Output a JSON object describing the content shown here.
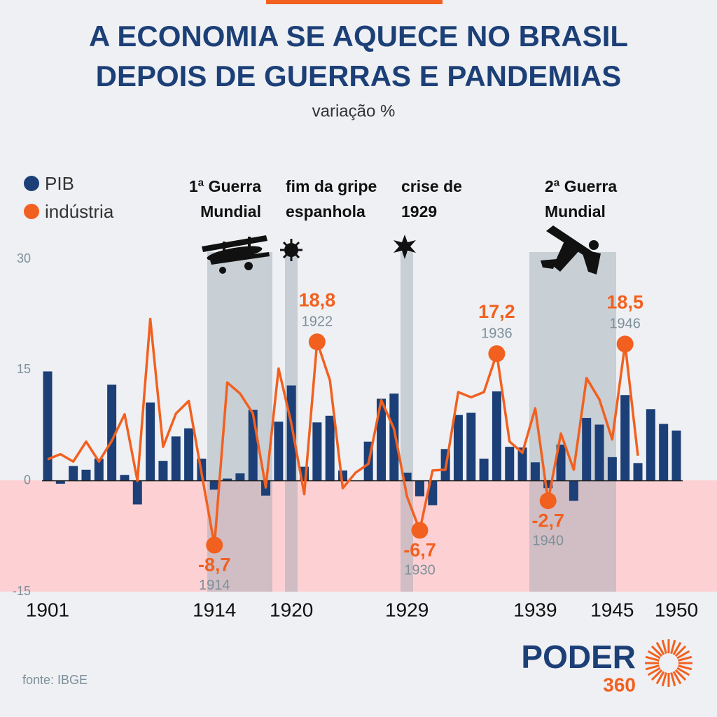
{
  "chart_data": {
    "type": "bar+line",
    "title_lines": [
      "A ECONOMIA SE AQUECE NO BRASIL",
      "DEPOIS DE GUERRAS E PANDEMIAS"
    ],
    "subtitle": "variação %",
    "x": [
      1901,
      1902,
      1903,
      1904,
      1905,
      1906,
      1907,
      1908,
      1909,
      1910,
      1911,
      1912,
      1913,
      1914,
      1915,
      1916,
      1917,
      1918,
      1919,
      1920,
      1921,
      1922,
      1923,
      1924,
      1925,
      1926,
      1927,
      1928,
      1929,
      1930,
      1931,
      1932,
      1933,
      1934,
      1935,
      1936,
      1937,
      1938,
      1939,
      1940,
      1941,
      1942,
      1943,
      1944,
      1945,
      1946,
      1947,
      1948,
      1949,
      1950
    ],
    "xlim": [
      1901,
      1950
    ],
    "xticks": [
      1901,
      1914,
      1920,
      1929,
      1939,
      1945,
      1950
    ],
    "ylim": [
      -15,
      30
    ],
    "yticks": [
      30,
      15,
      0,
      -15
    ],
    "series": [
      {
        "name": "PIB",
        "color": "#1c3f77",
        "kind": "bar",
        "values": [
          14.8,
          -0.4,
          2.0,
          1.5,
          3.0,
          13.0,
          0.8,
          -3.2,
          10.6,
          2.7,
          6.0,
          7.1,
          3.0,
          -1.2,
          0.3,
          1.0,
          9.6,
          -2.0,
          8.0,
          12.9,
          1.9,
          7.9,
          8.8,
          1.4,
          0.0,
          5.3,
          11.1,
          11.8,
          1.1,
          -2.1,
          -3.3,
          4.3,
          8.9,
          9.2,
          3.0,
          12.1,
          4.6,
          4.5,
          2.5,
          -1.0,
          4.9,
          -2.7,
          8.5,
          7.6,
          3.2,
          11.6,
          2.4,
          9.7,
          7.7,
          6.8
        ]
      },
      {
        "name": "indústria",
        "color": "#f2601f",
        "kind": "line",
        "values": [
          2.9,
          3.6,
          2.6,
          5.3,
          2.6,
          5.4,
          9.0,
          0.0,
          21.9,
          4.6,
          9.1,
          10.8,
          1.0,
          -8.7,
          13.3,
          11.8,
          9.1,
          -0.9,
          15.2,
          7.7,
          -1.8,
          18.8,
          13.6,
          -1.0,
          1.1,
          2.3,
          10.9,
          7.0,
          -2.1,
          -6.7,
          1.4,
          1.5,
          12.0,
          11.3,
          12.0,
          17.2,
          5.3,
          3.8,
          9.8,
          -2.7,
          6.4,
          1.5,
          13.9,
          11.0,
          5.6,
          18.5,
          3.4,
          null,
          null,
          null
        ],
        "value_labels": [
          null,
          null,
          null,
          null,
          null,
          null,
          null,
          null,
          null,
          null,
          null,
          null,
          null,
          "-8,7",
          null,
          null,
          null,
          null,
          null,
          null,
          null,
          "18,8",
          null,
          null,
          null,
          null,
          null,
          null,
          null,
          "-6,7",
          null,
          null,
          null,
          null,
          null,
          "17,2",
          null,
          null,
          null,
          "-2,7",
          null,
          null,
          null,
          null,
          null,
          "18,5",
          null,
          null,
          null,
          null
        ]
      }
    ],
    "annotations": [
      {
        "lines": [
          "1ª Guerra",
          "Mundial"
        ]
      },
      {
        "lines": [
          "fim da gripe",
          "espanhola"
        ]
      },
      {
        "lines": [
          "crise de",
          "1929"
        ]
      },
      {
        "lines": [
          "2ª Guerra",
          "Mundial"
        ]
      }
    ],
    "source": "fonte: IBGE",
    "logo": [
      "PODER",
      "360"
    ]
  }
}
